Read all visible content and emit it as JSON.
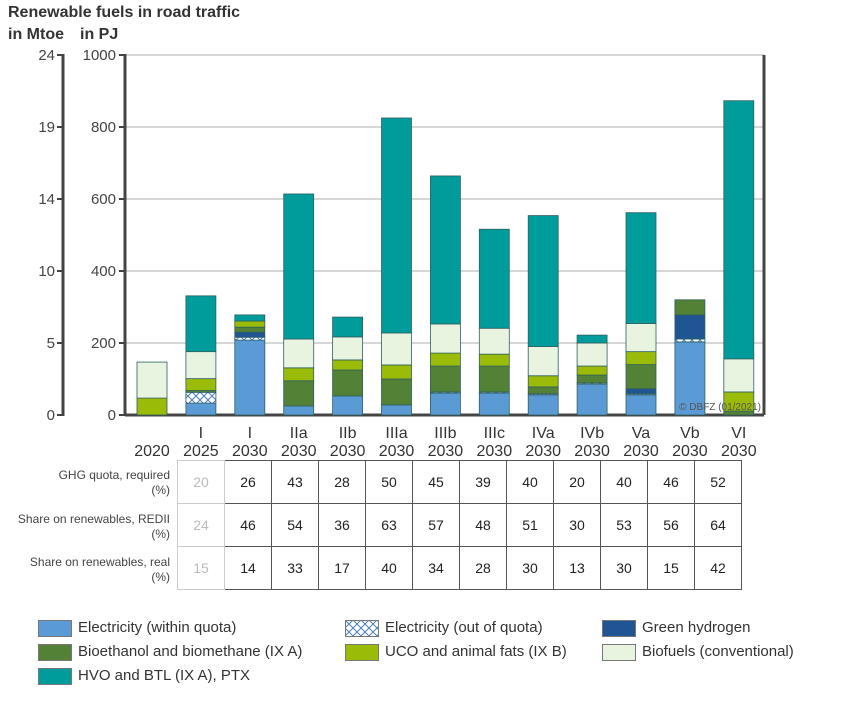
{
  "chart_data": {
    "type": "bar",
    "stacked": true,
    "title": "Renewable fuels in road traffic",
    "ylabel_left": "in Mtoe",
    "ylabel_right": "in PJ",
    "y_ticks_pj": [
      "0",
      "200",
      "400",
      "600",
      "800",
      "1000"
    ],
    "y_ticks_mtoe": [
      "0",
      "5",
      "10",
      "14",
      "19",
      "24"
    ],
    "ylim": [
      0,
      1000
    ],
    "grid": true,
    "categories": [
      {
        "top": "",
        "bottom": "2020"
      },
      {
        "top": "I",
        "bottom": "2025"
      },
      {
        "top": "I",
        "bottom": "2030"
      },
      {
        "top": "IIa",
        "bottom": "2030"
      },
      {
        "top": "IIb",
        "bottom": "2030"
      },
      {
        "top": "IIIa",
        "bottom": "2030"
      },
      {
        "top": "IIIb",
        "bottom": "2030"
      },
      {
        "top": "IIIc",
        "bottom": "2030"
      },
      {
        "top": "IVa",
        "bottom": "2030"
      },
      {
        "top": "IVb",
        "bottom": "2030"
      },
      {
        "top": "Va",
        "bottom": "2030"
      },
      {
        "top": "Vb",
        "bottom": "2030"
      },
      {
        "top": "VI",
        "bottom": "2030"
      }
    ],
    "series": [
      {
        "key": "elec",
        "name": "Electricity (within quota)",
        "color": "#5b9bd5",
        "values": [
          0,
          33,
          208,
          25,
          53,
          28,
          61,
          61,
          56,
          86,
          56,
          203,
          0
        ]
      },
      {
        "key": "elecout",
        "name": "Electricity (out of quota)",
        "color": "#ffffff",
        "pattern": "crosshatch",
        "values": [
          0,
          30,
          8,
          0,
          0,
          0,
          3,
          3,
          3,
          3,
          3,
          8,
          0
        ]
      },
      {
        "key": "h2",
        "name": "Green hydrogen",
        "color": "#1f5592",
        "values": [
          0,
          0,
          14,
          0,
          0,
          0,
          0,
          0,
          0,
          0,
          14,
          67,
          0
        ]
      },
      {
        "key": "bioeth",
        "name": "Bioethanol and biomethane (IX A)",
        "color": "#538135",
        "values": [
          0,
          5,
          14,
          70,
          72,
          72,
          72,
          72,
          19,
          22,
          67,
          42,
          11
        ]
      },
      {
        "key": "uco",
        "name": "UCO and animal fats (IX B)",
        "color": "#9bbb09",
        "values": [
          47,
          33,
          17,
          36,
          28,
          39,
          36,
          33,
          31,
          25,
          36,
          0,
          53
        ]
      },
      {
        "key": "biofuel",
        "name": "Biofuels (conventional)",
        "color": "#e8f4df",
        "values": [
          100,
          75,
          0,
          80,
          64,
          89,
          81,
          72,
          81,
          64,
          78,
          0,
          92
        ]
      },
      {
        "key": "hvo",
        "name": "HVO and BTL (IX A), PTX",
        "color": "#009b9b",
        "values": [
          0,
          155,
          17,
          403,
          55,
          597,
          411,
          275,
          364,
          22,
          308,
          0,
          717
        ]
      }
    ],
    "annotation": "© DBFZ (01/2021)"
  },
  "table": {
    "rows": [
      {
        "label_line1": "GHG quota, required",
        "label_line2": "(%)",
        "values": [
          "20",
          "26",
          "43",
          "28",
          "50",
          "45",
          "39",
          "40",
          "20",
          "40",
          "46",
          "52"
        ]
      },
      {
        "label_line1": "Share on renewables, REDII",
        "label_line2": "(%)",
        "values": [
          "24",
          "46",
          "54",
          "36",
          "63",
          "57",
          "48",
          "51",
          "30",
          "53",
          "56",
          "64"
        ]
      },
      {
        "label_line1": "Share on renewables, real",
        "label_line2": "(%)",
        "values": [
          "15",
          "14",
          "33",
          "17",
          "40",
          "34",
          "28",
          "30",
          "13",
          "30",
          "15",
          "42"
        ]
      }
    ]
  }
}
